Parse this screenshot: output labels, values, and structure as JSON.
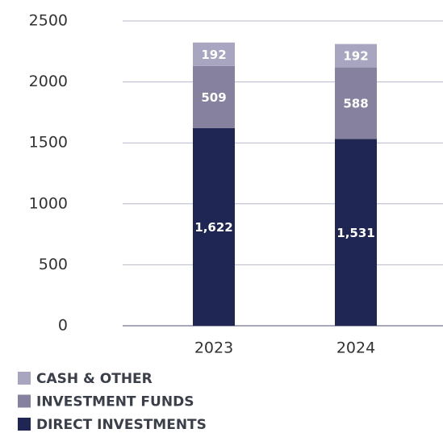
{
  "chart_data": {
    "type": "stacked_bar",
    "categories": [
      "2023",
      "2024"
    ],
    "series": [
      {
        "name": "DIRECT INVESTMENTS",
        "color": "#1f2654",
        "values": [
          1622,
          1531
        ],
        "value_labels": [
          "1,622",
          "1,531"
        ]
      },
      {
        "name": "INVESTMENT FUNDS",
        "color": "#85819f",
        "values": [
          509,
          588
        ]
      },
      {
        "name": "CASH & OTHER",
        "color": "#a8a5c0",
        "values": [
          192,
          192
        ]
      }
    ],
    "ylim": [
      0,
      2500
    ],
    "yticks": [
      0,
      500,
      1000,
      1500,
      2000,
      2500
    ],
    "grid": true,
    "legend": "bottom"
  }
}
